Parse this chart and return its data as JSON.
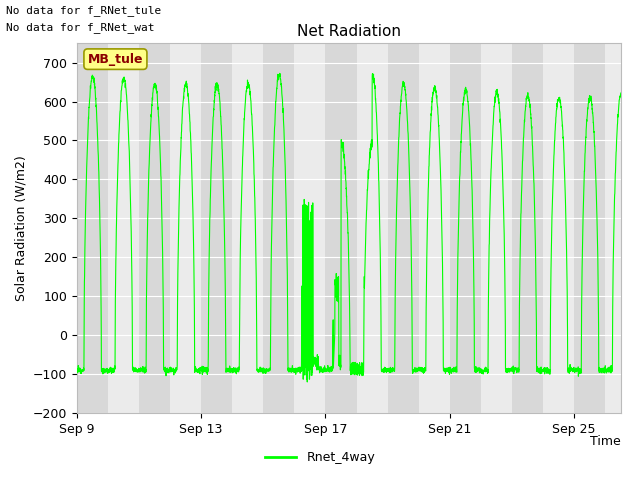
{
  "title": "Net Radiation",
  "ylabel": "Solar Radiation (W/m2)",
  "xlabel": "Time",
  "legend_label": "Rnet_4way",
  "line_color": "#00FF00",
  "ylim": [
    -200,
    750
  ],
  "yticks": [
    -200,
    -100,
    0,
    100,
    200,
    300,
    400,
    500,
    600,
    700
  ],
  "xtick_labels": [
    "Sep 9",
    "Sep 13",
    "Sep 17",
    "Sep 21",
    "Sep 25"
  ],
  "xtick_positions": [
    0,
    4,
    8,
    12,
    16
  ],
  "note1": "No data for f_RNet_tule",
  "note2": "No data for f_RNet_wat",
  "box_label": "MB_tule",
  "band_dark": "#D8D8D8",
  "band_light": "#EBEBEB",
  "num_days": 17.5,
  "peak_values": [
    665,
    660,
    645,
    645,
    645,
    645,
    670,
    610,
    330,
    670,
    645,
    635,
    630,
    625,
    615,
    610,
    610,
    620
  ],
  "trough_value": -90,
  "title_fontsize": 11,
  "axis_fontsize": 9,
  "tick_fontsize": 9,
  "figwidth": 6.4,
  "figheight": 4.8,
  "dpi": 100
}
